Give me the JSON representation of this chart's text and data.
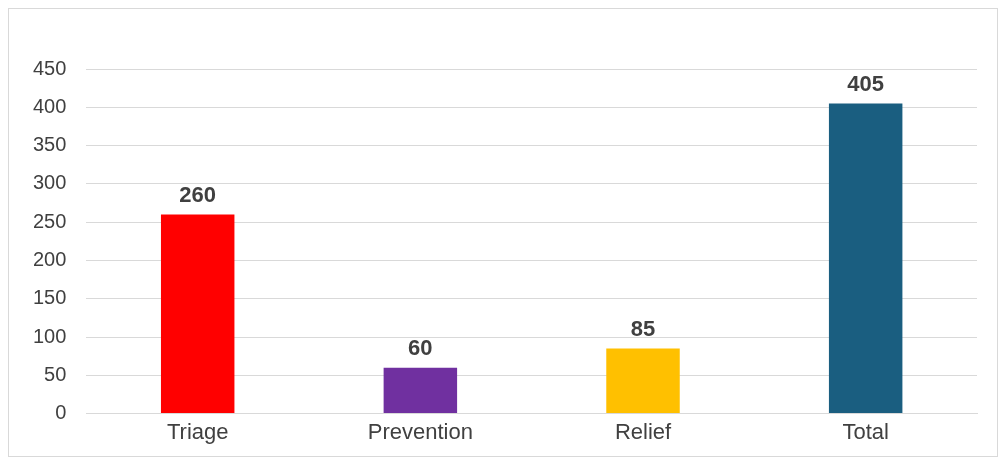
{
  "chart_data": {
    "type": "bar",
    "categories": [
      "Triage",
      "Prevention",
      "Relief",
      "Total"
    ],
    "values": [
      260,
      60,
      85,
      405
    ],
    "colors": [
      "#ff0000",
      "#7030a0",
      "#ffc000",
      "#1a5e80"
    ],
    "ylim": [
      0,
      450
    ],
    "yticks": [
      0,
      50,
      100,
      150,
      200,
      250,
      300,
      350,
      400,
      450
    ],
    "grid": "y",
    "data_labels": true,
    "legend": false
  }
}
